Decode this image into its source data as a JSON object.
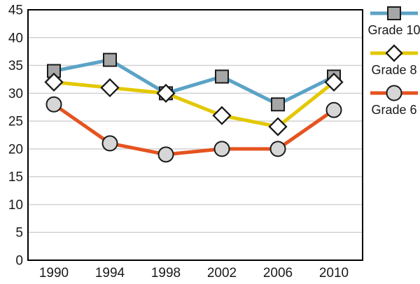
{
  "chart_data": {
    "type": "line",
    "categories": [
      "1990",
      "1994",
      "1998",
      "2002",
      "2006",
      "2010"
    ],
    "series": [
      {
        "name": "Grade 10",
        "values": [
          34,
          36,
          30,
          33,
          28,
          33
        ],
        "color": "#5BA3C6",
        "marker": "square",
        "marker_fill": "#A6A6A6"
      },
      {
        "name": "Grade 8",
        "values": [
          32,
          31,
          30,
          26,
          24,
          32
        ],
        "color": "#E3C800",
        "marker": "diamond",
        "marker_fill": "#FFFFFF"
      },
      {
        "name": "Grade 6",
        "values": [
          28,
          21,
          19,
          20,
          20,
          27
        ],
        "color": "#E5531F",
        "marker": "circle",
        "marker_fill": "#D6D6D6"
      }
    ],
    "title": "",
    "xlabel": "",
    "ylabel": "",
    "ylim": [
      0,
      45
    ],
    "ytick_step": 5,
    "y_tick_labels": [
      "0",
      "5",
      "10",
      "15",
      "20",
      "25",
      "30",
      "35",
      "40",
      "45"
    ],
    "grid": true,
    "legend_position": "right"
  },
  "colors": {
    "gridline": "#D2D2D2",
    "axis_border": "#000000",
    "text": "#1A1A1A",
    "marker_stroke": "#1A1A1A"
  }
}
